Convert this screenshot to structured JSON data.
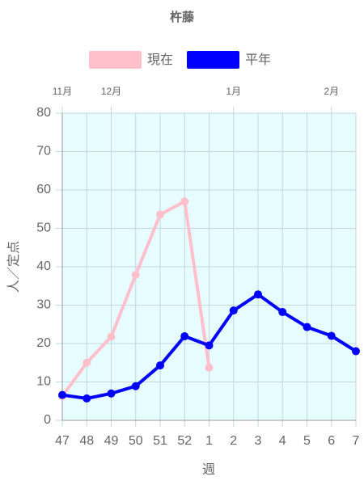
{
  "chart_data": {
    "type": "line",
    "title": "杵藤",
    "categories": [
      "47",
      "48",
      "49",
      "50",
      "51",
      "52",
      "1",
      "2",
      "3",
      "4",
      "5",
      "6",
      "7"
    ],
    "month_labels": [
      "11月",
      null,
      "12月",
      null,
      null,
      null,
      null,
      "1月",
      null,
      null,
      null,
      "2月",
      null
    ],
    "x_label": "週",
    "y_label": "人／定点",
    "series": [
      {
        "name": "現在",
        "color": "#ffc0cb",
        "values": [
          6.3,
          15,
          21.8,
          37.9,
          53.6,
          57,
          13.7,
          null,
          null,
          null,
          null,
          null,
          null
        ]
      },
      {
        "name": "平年",
        "color": "#0000ff",
        "values": [
          6.6,
          5.7,
          7,
          8.9,
          14.3,
          21.9,
          19.5,
          28.6,
          32.8,
          28.2,
          24.3,
          22,
          18
        ]
      }
    ],
    "ylim": [
      0,
      80
    ],
    "yticks": [
      0,
      10,
      20,
      30,
      40,
      50,
      60,
      70,
      80
    ],
    "grid": true,
    "legend": "top"
  }
}
